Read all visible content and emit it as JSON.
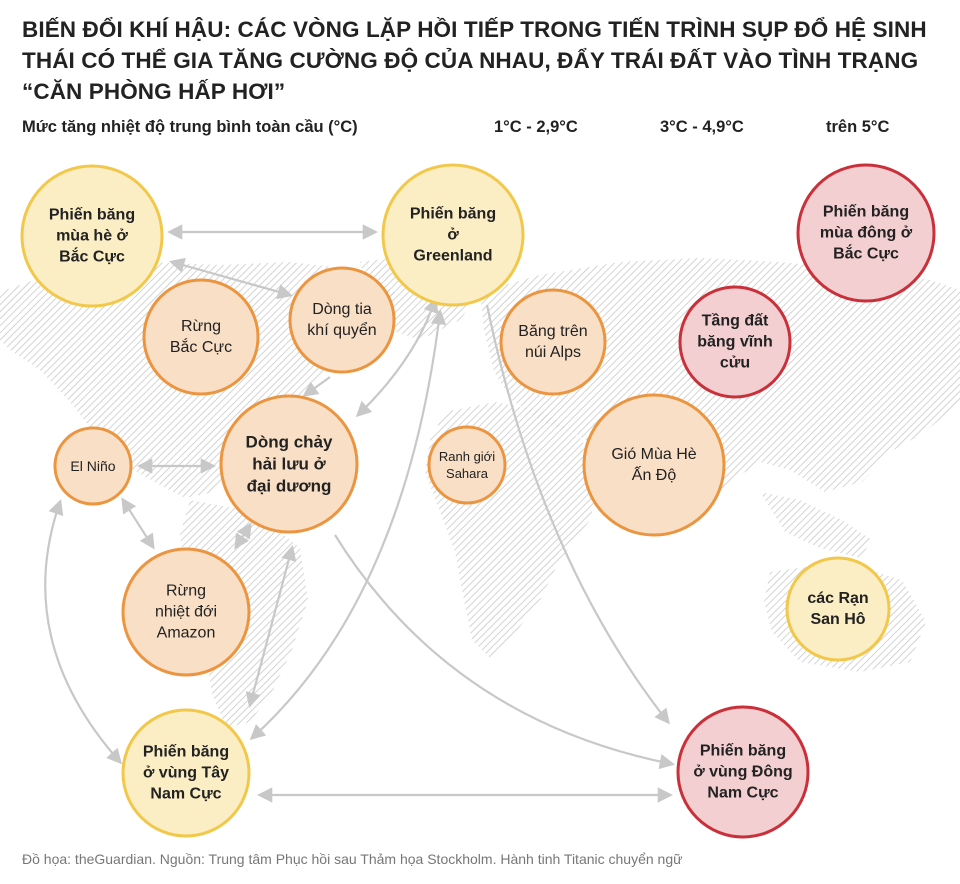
{
  "title": "BIẾN ĐỔI KHÍ HẬU: CÁC VÒNG LẶP HỒI TIẾP TRONG TIẾN TRÌNH SỤP ĐỔ HỆ SINH THÁI CÓ THỂ GIA TĂNG CƯỜNG ĐỘ CỦA NHAU, ĐẨY TRÁI ĐẤT VÀO TÌNH TRẠNG “CĂN PHÒNG HẤP HƠI”",
  "scale": {
    "label": "Mức tăng nhiệt độ trung bình toàn cầu (°C)",
    "levels": [
      "1°C - 2,9°C",
      "3°C - 4,9°C",
      "trên 5°C"
    ]
  },
  "colors": {
    "level1_fill": "#fbeec5",
    "level1_stroke": "#f2c84b",
    "level2_fill": "#f9dfc6",
    "level2_stroke": "#ec9540",
    "level3_fill": "#f3cfd1",
    "level3_stroke": "#c9303a",
    "arrow": "#c8c8c8",
    "map_hatch": "#c9c9c9"
  },
  "nodes": [
    {
      "id": "arctic-summer-ice",
      "lines": [
        "Phiến băng",
        "mùa hè ở",
        "Bắc Cực"
      ],
      "level": 1,
      "bold": true
    },
    {
      "id": "greenland-ice",
      "lines": [
        "Phiến băng",
        "ở",
        "Greenland"
      ],
      "level": 1,
      "bold": true
    },
    {
      "id": "arctic-winter-ice",
      "lines": [
        "Phiến băng",
        "mùa đông ở",
        "Bắc Cực"
      ],
      "level": 3,
      "bold": true
    },
    {
      "id": "boreal-forest",
      "lines": [
        "Rừng",
        "Bắc Cực"
      ],
      "level": 2,
      "bold": false
    },
    {
      "id": "jet-stream",
      "lines": [
        "Dòng tia",
        "khí quyển"
      ],
      "level": 2,
      "bold": false
    },
    {
      "id": "alpine-glaciers",
      "lines": [
        "Băng trên",
        "núi Alps"
      ],
      "level": 2,
      "bold": false
    },
    {
      "id": "permafrost",
      "lines": [
        "Tầng đất",
        "băng vĩnh",
        "cửu"
      ],
      "level": 3,
      "bold": true
    },
    {
      "id": "el-nino",
      "lines": [
        "El Niño"
      ],
      "level": 2,
      "bold": false
    },
    {
      "id": "ocean-circulation",
      "lines": [
        "Dòng chảy",
        "hải lưu ở",
        "đại dương"
      ],
      "level": 2,
      "bold": true
    },
    {
      "id": "sahara-boundary",
      "lines": [
        "Ranh giới",
        "Sahara"
      ],
      "level": 2,
      "bold": false
    },
    {
      "id": "indian-monsoon",
      "lines": [
        "Gió Mùa Hè",
        "Ấn Độ"
      ],
      "level": 2,
      "bold": false
    },
    {
      "id": "amazon-rainforest",
      "lines": [
        "Rừng",
        "nhiệt đới",
        "Amazon"
      ],
      "level": 2,
      "bold": false
    },
    {
      "id": "coral-reefs",
      "lines": [
        "các Rạn",
        "San Hô"
      ],
      "level": 1,
      "bold": true
    },
    {
      "id": "west-antarctic-ice",
      "lines": [
        "Phiến băng",
        "ở vùng Tây",
        "Nam Cực"
      ],
      "level": 1,
      "bold": true
    },
    {
      "id": "east-antarctic-ice",
      "lines": [
        "Phiến băng",
        "ở vùng Đông",
        "Nam Cực"
      ],
      "level": 3,
      "bold": true
    }
  ],
  "footer": "Đồ họa: theGuardian. Nguồn: Trung tâm Phục hồi sau Thảm họa Stockholm. Hành tinh Titanic chuyển ngữ"
}
